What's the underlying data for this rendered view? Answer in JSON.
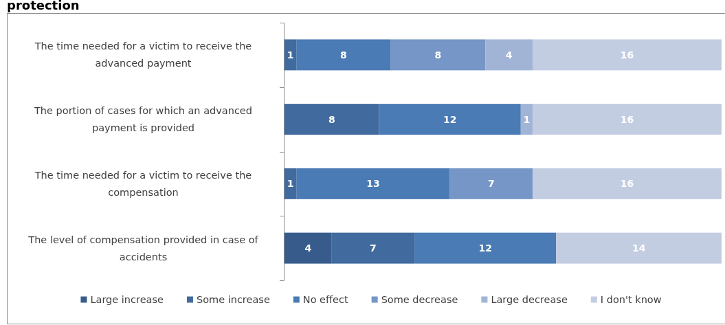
{
  "chart_data": {
    "type": "bar",
    "title": "protection",
    "orientation": "horizontal",
    "stacked": true,
    "data_labels": true,
    "legend": "bottom",
    "categories": [
      "The time needed for a victim to receive the advanced payment",
      "The portion of cases for which an advanced payment is provided",
      "The time needed for a victim to receive the compensation",
      "The level of compensation provided in case of accidents"
    ],
    "series": [
      {
        "name": "Large increase",
        "color": "#375c8c",
        "values": [
          null,
          null,
          null,
          4
        ]
      },
      {
        "name": "Some increase",
        "color": "#416b9e",
        "values": [
          1,
          8,
          1,
          7
        ]
      },
      {
        "name": "No effect",
        "color": "#4a7bb4",
        "values": [
          8,
          12,
          13,
          12
        ]
      },
      {
        "name": "Some decrease",
        "color": "#7596c6",
        "values": [
          8,
          null,
          7,
          null
        ]
      },
      {
        "name": "Large decrease",
        "color": "#a1b4d6",
        "values": [
          4,
          1,
          null,
          null
        ]
      },
      {
        "name": "I don't know",
        "color": "#c3cde2",
        "values": [
          16,
          16,
          16,
          14
        ]
      }
    ]
  }
}
